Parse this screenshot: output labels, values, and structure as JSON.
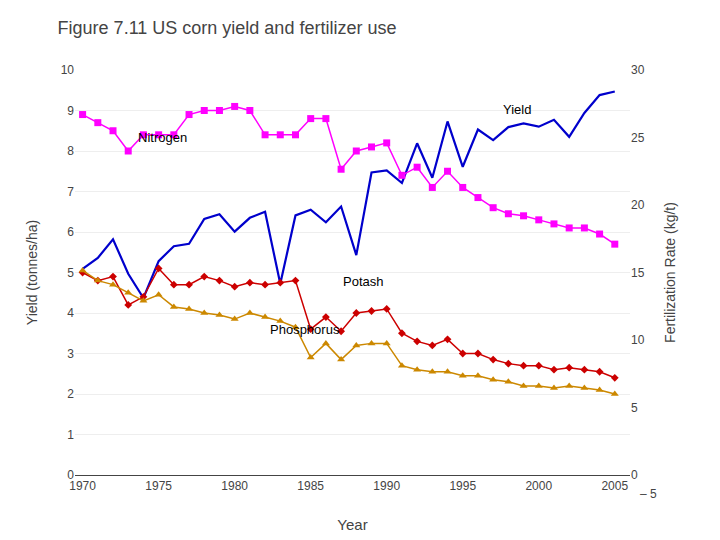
{
  "chart_data": {
    "type": "line",
    "title": "Figure 7.11 US corn yield and fertilizer use",
    "x_label": "Year",
    "y_label": "Yield (tonnes/ha)",
    "y2_label": "Fertilization Rate (kg/t)",
    "x": [
      1970,
      1971,
      1972,
      1973,
      1974,
      1975,
      1976,
      1977,
      1978,
      1979,
      1980,
      1981,
      1982,
      1983,
      1984,
      1985,
      1986,
      1987,
      1988,
      1989,
      1990,
      1991,
      1992,
      1993,
      1994,
      1995,
      1996,
      1997,
      1998,
      1999,
      2000,
      2001,
      2002,
      2003,
      2004,
      2005
    ],
    "series": [
      {
        "name": "Yield",
        "color": "#0000CC",
        "marker": "none",
        "values": [
          5.09,
          5.36,
          5.82,
          4.97,
          4.37,
          5.28,
          5.65,
          5.71,
          6.32,
          6.44,
          6.01,
          6.35,
          6.5,
          4.72,
          6.41,
          6.55,
          6.24,
          6.63,
          5.43,
          7.47,
          7.52,
          7.21,
          8.19,
          7.34,
          8.73,
          7.61,
          8.53,
          8.27,
          8.59,
          8.68,
          8.6,
          8.77,
          8.35,
          8.94,
          9.38,
          9.47
        ]
      },
      {
        "name": "Nitrogen",
        "color": "#FF00FF",
        "marker": "square",
        "values": [
          8.9,
          8.7,
          8.5,
          8.0,
          8.4,
          8.4,
          8.4,
          8.9,
          9.0,
          9.0,
          9.1,
          9.0,
          8.4,
          8.4,
          8.4,
          8.8,
          8.8,
          7.55,
          8.0,
          8.1,
          8.2,
          7.4,
          7.6,
          7.1,
          7.5,
          7.1,
          6.85,
          6.6,
          6.45,
          6.4,
          6.3,
          6.2,
          6.1,
          6.1,
          5.95,
          5.7
        ]
      },
      {
        "name": "Potash",
        "color": "#CC0000",
        "marker": "diamond",
        "values": [
          5.0,
          4.8,
          4.9,
          4.2,
          4.4,
          5.1,
          4.7,
          4.7,
          4.9,
          4.8,
          4.65,
          4.75,
          4.7,
          4.75,
          4.8,
          3.6,
          3.9,
          3.55,
          4.0,
          4.05,
          4.1,
          3.5,
          3.3,
          3.2,
          3.35,
          3.0,
          3.0,
          2.85,
          2.75,
          2.7,
          2.7,
          2.6,
          2.65,
          2.6,
          2.55,
          2.4
        ]
      },
      {
        "name": "Phosphorus",
        "color": "#CC8800",
        "marker": "triangle-up",
        "values": [
          5.05,
          4.8,
          4.7,
          4.5,
          4.3,
          4.45,
          4.15,
          4.1,
          4.0,
          3.95,
          3.85,
          4.0,
          3.9,
          3.8,
          3.65,
          2.9,
          3.25,
          2.85,
          3.2,
          3.25,
          3.25,
          2.7,
          2.6,
          2.55,
          2.55,
          2.45,
          2.45,
          2.35,
          2.3,
          2.2,
          2.2,
          2.15,
          2.2,
          2.15,
          2.1,
          2.0
        ]
      }
    ],
    "xlim": [
      1969.5,
      2006
    ],
    "xticks": [
      1970,
      1975,
      1980,
      1985,
      1990,
      1995,
      2000,
      2005
    ],
    "ylim": [
      0,
      10
    ],
    "yticks": [
      0,
      1,
      2,
      3,
      4,
      5,
      6,
      7,
      8,
      9,
      10
    ],
    "y2lim": [
      0,
      30
    ],
    "y2ticks": [
      0,
      5,
      10,
      15,
      20,
      25,
      30
    ],
    "grid": true,
    "annotations": [
      {
        "text": "Nitrogen",
        "x": 1973.5,
        "y": 8.1
      },
      {
        "text": "Potash",
        "x": 1987.0,
        "y": 4.55
      },
      {
        "text": "Phosphorus",
        "x": 1982.2,
        "y": 3.35
      },
      {
        "text": "Yield",
        "x": 1997.5,
        "y": 8.8
      },
      {
        "text": "– 5"
      }
    ]
  }
}
